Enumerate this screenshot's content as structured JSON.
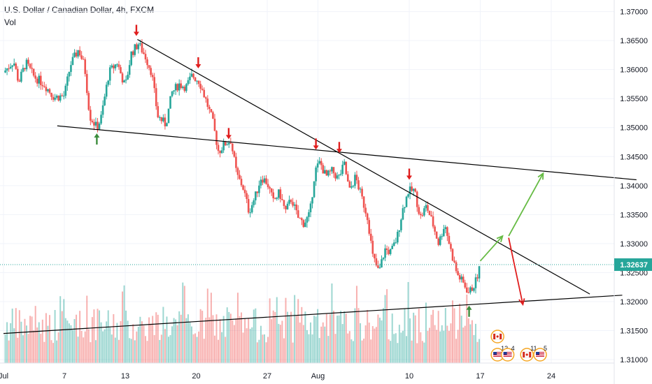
{
  "header": {
    "title": "U.S. Dollar / Canadian Dollar, 4h, FXCM",
    "volume_label": "Vol"
  },
  "colors": {
    "up": "#26a69a",
    "down": "#ef5350",
    "grid": "#f0f3fa",
    "axis_text": "#131722",
    "price_line": "#26a69a",
    "price_badge": "#26a69a",
    "trendline": "#000000",
    "arrow_down": "#e01e1e",
    "arrow_up": "#3c8c3c",
    "projection_up": "#66bb44",
    "projection_down": "#e01e1e"
  },
  "chart_data": {
    "type": "candlestick",
    "instrument": "U.S. Dollar / Canadian Dollar",
    "timeframe": "4h",
    "source": "FXCM",
    "ylim": [
      1.3094,
      1.372
    ],
    "y_ticks": [
      "1.37000",
      "1.36500",
      "1.36000",
      "1.35500",
      "1.35000",
      "1.34500",
      "1.34000",
      "1.33500",
      "1.33000",
      "1.32500",
      "1.32000",
      "1.31500",
      "1.31000"
    ],
    "x_ticks": [
      {
        "label": "Jul",
        "day": 0
      },
      {
        "label": "7",
        "day": 6
      },
      {
        "label": "13",
        "day": 12
      },
      {
        "label": "20",
        "day": 19
      },
      {
        "label": "27",
        "day": 26
      },
      {
        "label": "Aug",
        "day": 31
      },
      {
        "label": "10",
        "day": 40
      },
      {
        "label": "17",
        "day": 47
      },
      {
        "label": "24",
        "day": 54
      }
    ],
    "x_range_days": [
      0,
      61
    ],
    "last_price": "1.32637",
    "grid": true,
    "price_path": [
      [
        0,
        1.3595
      ],
      [
        1,
        1.3615
      ],
      [
        1.5,
        1.3578
      ],
      [
        2.2,
        1.3612
      ],
      [
        3,
        1.3588
      ],
      [
        4,
        1.3575
      ],
      [
        5,
        1.3552
      ],
      [
        6,
        1.3555
      ],
      [
        6.6,
        1.3608
      ],
      [
        7.4,
        1.3635
      ],
      [
        8,
        1.3605
      ],
      [
        8.5,
        1.352
      ],
      [
        9.2,
        1.35
      ],
      [
        9.6,
        1.3515
      ],
      [
        10.4,
        1.3595
      ],
      [
        11.2,
        1.3612
      ],
      [
        12,
        1.357
      ],
      [
        12.6,
        1.3628
      ],
      [
        13.3,
        1.3645
      ],
      [
        14,
        1.3622
      ],
      [
        14.6,
        1.3595
      ],
      [
        15.2,
        1.352
      ],
      [
        16,
        1.3505
      ],
      [
        16.6,
        1.356
      ],
      [
        17.3,
        1.3575
      ],
      [
        18,
        1.357
      ],
      [
        18.6,
        1.359
      ],
      [
        19.3,
        1.358
      ],
      [
        20,
        1.3545
      ],
      [
        20.6,
        1.3512
      ],
      [
        21.2,
        1.3458
      ],
      [
        21.8,
        1.3472
      ],
      [
        22.4,
        1.3478
      ],
      [
        23,
        1.3418
      ],
      [
        23.6,
        1.3398
      ],
      [
        24.2,
        1.3355
      ],
      [
        24.8,
        1.338
      ],
      [
        25.4,
        1.3415
      ],
      [
        26,
        1.3405
      ],
      [
        26.6,
        1.3372
      ],
      [
        27.2,
        1.3388
      ],
      [
        27.8,
        1.3355
      ],
      [
        28.4,
        1.3378
      ],
      [
        29,
        1.3345
      ],
      [
        29.6,
        1.3335
      ],
      [
        30.2,
        1.335
      ],
      [
        30.7,
        1.3425
      ],
      [
        31.2,
        1.344
      ],
      [
        31.8,
        1.3415
      ],
      [
        32.4,
        1.3425
      ],
      [
        33,
        1.3412
      ],
      [
        33.6,
        1.3436
      ],
      [
        34.1,
        1.339
      ],
      [
        34.7,
        1.3415
      ],
      [
        35.3,
        1.338
      ],
      [
        35.9,
        1.3345
      ],
      [
        36.4,
        1.3278
      ],
      [
        37,
        1.325
      ],
      [
        37.6,
        1.329
      ],
      [
        38.2,
        1.3285
      ],
      [
        38.8,
        1.331
      ],
      [
        39.3,
        1.3355
      ],
      [
        39.9,
        1.339
      ],
      [
        40.5,
        1.3392
      ],
      [
        41.1,
        1.3345
      ],
      [
        41.7,
        1.3365
      ],
      [
        42.3,
        1.3335
      ],
      [
        42.9,
        1.33
      ],
      [
        43.5,
        1.3335
      ],
      [
        44.1,
        1.3288
      ],
      [
        44.7,
        1.3248
      ],
      [
        45.3,
        1.3232
      ],
      [
        45.9,
        1.3215
      ],
      [
        46.5,
        1.3232
      ],
      [
        47,
        1.3262
      ]
    ],
    "volume_range": [
      0,
      100
    ],
    "volume_ylim": [
      0,
      110
    ],
    "trendlines": [
      {
        "name": "descending-resistance",
        "from": [
          13.2,
          1.3652
        ],
        "to": [
          57.8,
          1.3213
        ]
      },
      {
        "name": "upper-flat-line",
        "from": [
          5.3,
          1.3503
        ],
        "to": [
          62.4,
          1.341
        ]
      },
      {
        "name": "rising-support",
        "from": [
          0,
          1.3145
        ],
        "to": [
          61,
          1.3211
        ]
      }
    ],
    "markers_down": [
      {
        "day": 13.1,
        "price": 1.3658
      },
      {
        "day": 19.2,
        "price": 1.3602
      },
      {
        "day": 22.2,
        "price": 1.348
      },
      {
        "day": 30.8,
        "price": 1.3462
      },
      {
        "day": 33.1,
        "price": 1.3456
      },
      {
        "day": 40.0,
        "price": 1.341
      }
    ],
    "markers_up": [
      {
        "day": 9.2,
        "price": 1.349
      },
      {
        "day": 45.9,
        "price": 1.3193
      }
    ],
    "projections": [
      {
        "name": "up-leg-1",
        "color": "projection_up",
        "from": [
          47.0,
          1.327
        ],
        "to": [
          49.2,
          1.3313
        ]
      },
      {
        "name": "up-leg-2",
        "color": "projection_up",
        "from": [
          49.8,
          1.3313
        ],
        "to": [
          53.2,
          1.3421
        ]
      },
      {
        "name": "down-leg",
        "color": "projection_down",
        "from": [
          49.8,
          1.331
        ],
        "to": [
          51.2,
          1.3195
        ]
      }
    ],
    "event_icons": [
      {
        "flag": "CA",
        "count": "",
        "day": 48.7,
        "row": 0
      },
      {
        "flag": "US",
        "count": "13",
        "day": 48.7,
        "row": 1
      },
      {
        "flag": "US",
        "count": "4",
        "day": 49.7,
        "row": 1
      },
      {
        "flag": "CA",
        "count": "11",
        "day": 51.6,
        "row": 1
      },
      {
        "flag": "US",
        "count": "5",
        "day": 52.9,
        "row": 1
      }
    ]
  }
}
